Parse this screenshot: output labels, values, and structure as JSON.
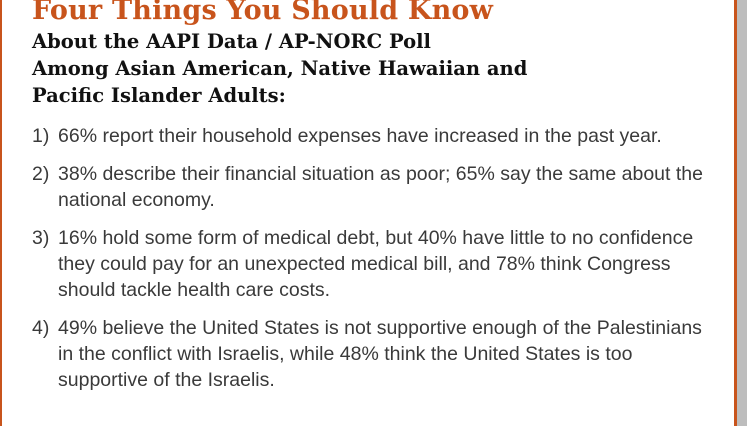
{
  "header": {
    "title": "Four Things You Should Know",
    "subtitle_lines": [
      "About the AAPI Data / AP-NORC Poll",
      "Among Asian American, Native Hawaiian and",
      "Pacific Islander Adults:"
    ]
  },
  "items": [
    {
      "number": "1)",
      "text": "66% report their household expenses have increased in the past year."
    },
    {
      "number": "2)",
      "text": "38% describe their financial situation as poor; 65% say the same about the national economy."
    },
    {
      "number": "3)",
      "text": "16% hold some form of medical debt, but 40% have little to no confidence they could pay for an unexpected medical bill, and 78% think Congress should tackle health care costs."
    },
    {
      "number": "4)",
      "text": "49% believe the United States is not supportive enough of the Palestinians in the conflict with Israelis, while 48% think the United States is too supportive of the Israelis."
    }
  ],
  "colors": {
    "accent": "#c8541c",
    "body_text": "#3a3a3a",
    "heading_text": "#111111",
    "right_margin": "#bdbdbd"
  }
}
